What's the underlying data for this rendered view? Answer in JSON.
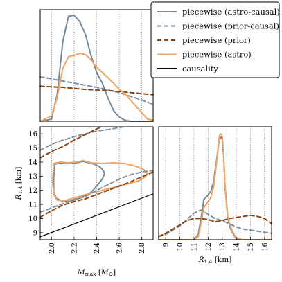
{
  "colors": {
    "astro_causal": "#778899",
    "prior_causal": "#8090a3",
    "prior": "#8b4513",
    "astro": "#f4a460",
    "causality": "#000000"
  },
  "legend": {
    "items": [
      {
        "label": "piecewise (astro-causal)",
        "color": "#778899",
        "dash": "solid"
      },
      {
        "label": "piecewise (prior-causal)",
        "color": "#8090a3",
        "dash": "dashed"
      },
      {
        "label": "piecewise (prior)",
        "color": "#8b4513",
        "dash": "dashed"
      },
      {
        "label": "piecewise (astro)",
        "color": "#f4a460",
        "dash": "solid"
      },
      {
        "label": "causality",
        "color": "#000000",
        "dash": "solid"
      }
    ],
    "placement": "top-right"
  },
  "chart_data": [
    {
      "panel": "top-left",
      "type": "line",
      "xlim": [
        1.9,
        2.9
      ],
      "grid": true,
      "series": [
        {
          "name": "piecewise (astro-causal)",
          "style": "solid",
          "x": [
            1.9,
            2.0,
            2.05,
            2.1,
            2.15,
            2.2,
            2.25,
            2.3,
            2.35,
            2.4,
            2.45,
            2.5,
            2.55,
            2.6,
            2.65,
            2.7,
            2.8,
            2.9
          ],
          "y": [
            0,
            0.02,
            0.25,
            0.75,
            0.99,
            1.0,
            0.94,
            0.82,
            0.62,
            0.46,
            0.36,
            0.22,
            0.1,
            0.04,
            0.01,
            0,
            0,
            0
          ]
        },
        {
          "name": "piecewise (prior-causal)",
          "style": "dashed",
          "x": [
            1.9,
            2.0,
            2.2,
            2.4,
            2.6,
            2.8,
            2.9
          ],
          "y": [
            0.42,
            0.4,
            0.36,
            0.32,
            0.27,
            0.2,
            0.16
          ]
        },
        {
          "name": "piecewise (prior)",
          "style": "dashed",
          "x": [
            1.9,
            2.1,
            2.3,
            2.5,
            2.7,
            2.9
          ],
          "y": [
            0.33,
            0.32,
            0.3,
            0.29,
            0.27,
            0.25
          ]
        },
        {
          "name": "piecewise (astro)",
          "style": "solid",
          "x": [
            1.9,
            2.0,
            2.05,
            2.1,
            2.15,
            2.2,
            2.25,
            2.3,
            2.35,
            2.4,
            2.45,
            2.5,
            2.55,
            2.6,
            2.65,
            2.7,
            2.75,
            2.8,
            2.85,
            2.9
          ],
          "y": [
            0,
            0.05,
            0.22,
            0.5,
            0.61,
            0.62,
            0.64,
            0.63,
            0.58,
            0.51,
            0.46,
            0.41,
            0.36,
            0.3,
            0.26,
            0.2,
            0.14,
            0.08,
            0.02,
            0.01
          ]
        }
      ]
    },
    {
      "panel": "bottom-left",
      "type": "line",
      "xlabel": "M_max [M_⊙]",
      "ylabel": "R_1.4 [km]",
      "xlim": [
        1.9,
        2.9
      ],
      "ylim": [
        8.5,
        16.5
      ],
      "xticks": [
        "2.0",
        "2.2",
        "2.4",
        "2.6",
        "2.8"
      ],
      "yticks": [
        "9",
        "10",
        "11",
        "12",
        "13",
        "14",
        "15",
        "16"
      ],
      "grid": true,
      "series": [
        {
          "name": "piecewise (astro-causal)",
          "style": "solid",
          "x": [
            2.03,
            2.08,
            2.15,
            2.22,
            2.28,
            2.33,
            2.38,
            2.42,
            2.45,
            2.47,
            2.45,
            2.4,
            2.35,
            2.3,
            2.25,
            2.18,
            2.1,
            2.04,
            2.02,
            2.02,
            2.03
          ],
          "y": [
            13.85,
            13.95,
            13.9,
            13.95,
            14.05,
            13.95,
            13.85,
            13.7,
            13.5,
            13.2,
            12.8,
            12.3,
            11.85,
            11.65,
            11.45,
            11.25,
            11.2,
            11.45,
            11.9,
            12.9,
            13.85
          ]
        },
        {
          "name": "piecewise (astro)",
          "style": "solid",
          "x": [
            2.02,
            2.08,
            2.15,
            2.22,
            2.28,
            2.35,
            2.45,
            2.55,
            2.65,
            2.75,
            2.82,
            2.85,
            2.83,
            2.78,
            2.7,
            2.6,
            2.5,
            2.4,
            2.3,
            2.2,
            2.1,
            2.05,
            2.02,
            2.01,
            2.02
          ],
          "y": [
            13.9,
            14.0,
            13.95,
            14.0,
            14.1,
            13.95,
            13.9,
            13.95,
            13.9,
            13.7,
            13.45,
            13.2,
            12.95,
            12.7,
            12.5,
            12.3,
            12.1,
            11.9,
            11.7,
            11.45,
            11.25,
            11.3,
            11.7,
            12.7,
            13.9
          ]
        },
        {
          "name": "piecewise (prior-causal)",
          "style": "dashed",
          "x": [
            1.9,
            2.0,
            2.1,
            2.2,
            2.3,
            2.4,
            2.5,
            2.6,
            2.7,
            2.8,
            2.9,
            null,
            1.9,
            2.0,
            2.1,
            2.2,
            2.3,
            2.4,
            2.5,
            2.6,
            2.7,
            2.8,
            2.9
          ],
          "y": [
            14.85,
            15.25,
            15.55,
            15.8,
            16.0,
            16.2,
            16.3,
            16.45,
            16.55,
            null,
            null,
            null,
            10.45,
            10.75,
            11.05,
            11.35,
            11.55,
            12.0,
            12.4,
            12.8,
            13.1,
            13.3,
            13.4
          ]
        },
        {
          "name": "piecewise (prior)",
          "style": "dashed",
          "x": [
            1.9,
            2.0,
            2.1,
            2.2,
            2.3,
            2.4,
            2.5,
            null,
            1.9,
            2.0,
            2.1,
            2.2,
            2.3,
            2.4,
            2.5,
            2.6,
            2.7,
            2.8,
            2.9
          ],
          "y": [
            14.3,
            14.75,
            15.1,
            15.55,
            15.95,
            16.35,
            16.7,
            null,
            10.1,
            10.55,
            10.95,
            11.2,
            11.4,
            11.7,
            12.0,
            12.3,
            12.6,
            12.95,
            13.3
          ]
        },
        {
          "name": "causality",
          "style": "solid",
          "x": [
            1.9,
            2.9
          ],
          "y": [
            8.7,
            11.75
          ]
        }
      ]
    },
    {
      "panel": "bottom-right",
      "type": "line",
      "xlabel": "R_1.4 [km]",
      "xlim": [
        8.5,
        16.5
      ],
      "xticks": [
        "9",
        "10",
        "11",
        "12",
        "13",
        "14",
        "15",
        "16"
      ],
      "grid": true,
      "series": [
        {
          "name": "piecewise (astro-causal)",
          "style": "solid",
          "x": [
            8.5,
            11.0,
            11.3,
            11.5,
            11.7,
            12.0,
            12.2,
            12.4,
            12.6,
            12.8,
            12.9,
            13.0,
            13.1,
            13.2,
            13.4,
            13.6,
            13.8,
            14.0,
            14.2,
            16.5
          ],
          "y": [
            0,
            0,
            0.05,
            0.2,
            0.38,
            0.42,
            0.46,
            0.55,
            0.75,
            0.95,
            0.97,
            0.95,
            0.8,
            0.5,
            0.2,
            0.1,
            0.05,
            0.01,
            0,
            0
          ]
        },
        {
          "name": "piecewise (astro)",
          "style": "solid",
          "x": [
            8.5,
            11.0,
            11.3,
            11.5,
            11.7,
            12.0,
            12.2,
            12.4,
            12.6,
            12.8,
            12.9,
            13.0,
            13.1,
            13.2,
            13.4,
            13.6,
            13.8,
            14.0,
            14.2,
            14.4,
            16.5
          ],
          "y": [
            0,
            0,
            0.03,
            0.15,
            0.3,
            0.36,
            0.4,
            0.5,
            0.72,
            0.98,
            1.0,
            0.98,
            0.82,
            0.52,
            0.22,
            0.12,
            0.06,
            0.02,
            0.01,
            0,
            0
          ]
        },
        {
          "name": "piecewise (prior-causal)",
          "style": "dashed",
          "x": [
            8.5,
            9.0,
            9.5,
            10.0,
            10.5,
            11.0,
            11.5,
            12.0,
            12.5,
            13.0,
            13.5,
            14.0,
            14.5,
            15.0,
            15.5,
            16.0,
            16.5
          ],
          "y": [
            0.03,
            0.05,
            0.09,
            0.13,
            0.19,
            0.25,
            0.28,
            0.24,
            0.2,
            0.18,
            0.15,
            0.12,
            0.1,
            0.09,
            0.08,
            0.07,
            0.06
          ]
        },
        {
          "name": "piecewise (prior)",
          "style": "dashed",
          "x": [
            8.5,
            9.0,
            9.5,
            10.0,
            10.5,
            11.0,
            11.5,
            12.0,
            12.5,
            13.0,
            13.5,
            14.0,
            14.5,
            15.0,
            15.5,
            16.0,
            16.5
          ],
          "y": [
            0.03,
            0.06,
            0.1,
            0.14,
            0.18,
            0.2,
            0.2,
            0.19,
            0.17,
            0.18,
            0.2,
            0.21,
            0.22,
            0.23,
            0.22,
            0.2,
            0.15
          ]
        }
      ]
    }
  ]
}
